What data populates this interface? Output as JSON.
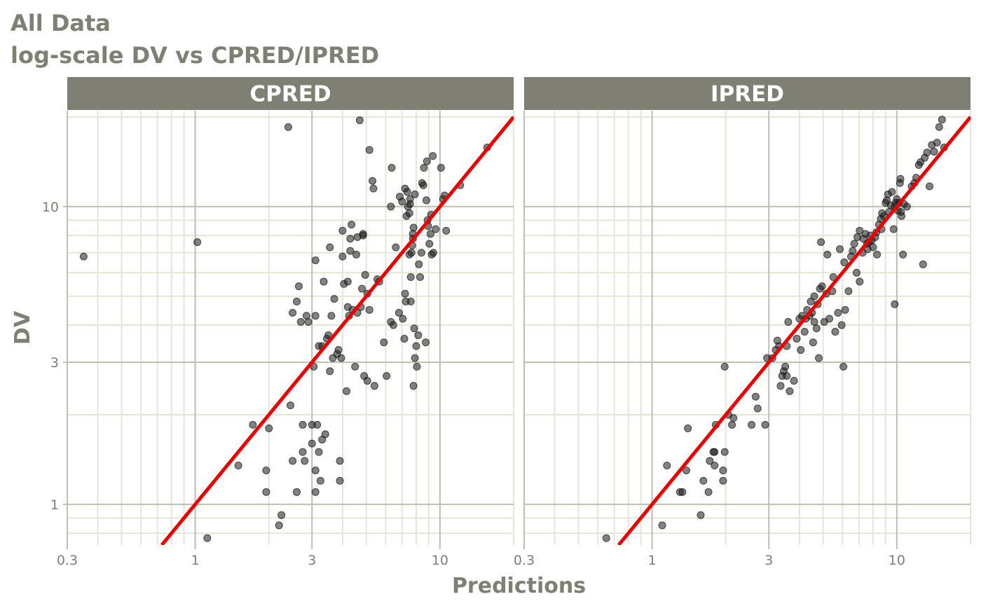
{
  "title_line1": "All Data",
  "title_line2": "log-scale DV vs CPRED/IPRED",
  "colors": {
    "text": "#7f7f74",
    "strip_bg": "#7f7f74",
    "strip_text": "#ffffff",
    "major_grid": "#bebeb2",
    "minor_grid": "#e6e6d8",
    "identity_line": "#ee0000",
    "points": "#1a1a1a"
  },
  "chart_data": {
    "type": "scatter",
    "xlabel": "Predictions",
    "ylabel": "DV",
    "x_scale": "log10",
    "y_scale": "log10",
    "xlim": [
      0.3,
      20
    ],
    "ylim": [
      0.73,
      21
    ],
    "x_ticks": [
      0.3,
      1,
      3,
      10
    ],
    "x_tick_labels": [
      "0.3",
      "1",
      "3",
      "10"
    ],
    "y_ticks": [
      1,
      3,
      10
    ],
    "y_tick_labels": [
      "1",
      "3",
      "10"
    ],
    "grid": true,
    "reference_line": "y = x",
    "panels": [
      {
        "label": "CPRED",
        "points": [
          [
            0.35,
            6.8
          ],
          [
            1.02,
            7.6
          ],
          [
            1.12,
            0.77
          ],
          [
            1.5,
            1.35
          ],
          [
            1.72,
            1.85
          ],
          [
            1.95,
            1.1
          ],
          [
            1.95,
            1.3
          ],
          [
            2.0,
            1.8
          ],
          [
            2.2,
            0.85
          ],
          [
            2.25,
            0.92
          ],
          [
            2.4,
            18.5
          ],
          [
            2.45,
            2.15
          ],
          [
            2.5,
            1.4
          ],
          [
            2.5,
            4.4
          ],
          [
            2.6,
            1.1
          ],
          [
            2.6,
            4.8
          ],
          [
            2.65,
            5.4
          ],
          [
            2.7,
            4.1
          ],
          [
            2.75,
            1.5
          ],
          [
            2.75,
            1.85
          ],
          [
            2.8,
            1.4
          ],
          [
            2.85,
            4.3
          ],
          [
            2.9,
            4.1
          ],
          [
            3.0,
            1.6
          ],
          [
            3.0,
            1.85
          ],
          [
            3.05,
            2.9
          ],
          [
            3.1,
            1.1
          ],
          [
            3.1,
            1.3
          ],
          [
            3.1,
            4.3
          ],
          [
            3.1,
            6.6
          ],
          [
            3.15,
            1.85
          ],
          [
            3.2,
            1.5
          ],
          [
            3.2,
            3.4
          ],
          [
            3.25,
            1.2
          ],
          [
            3.3,
            1.65
          ],
          [
            3.3,
            3.4
          ],
          [
            3.35,
            5.6
          ],
          [
            3.4,
            1.72
          ],
          [
            3.45,
            3.6
          ],
          [
            3.5,
            3.7
          ],
          [
            3.55,
            2.8
          ],
          [
            3.55,
            7.3
          ],
          [
            3.6,
            4.3
          ],
          [
            3.65,
            3.1
          ],
          [
            3.7,
            4.9
          ],
          [
            3.8,
            3.2
          ],
          [
            3.85,
            3.3
          ],
          [
            3.9,
            1.2
          ],
          [
            3.9,
            1.4
          ],
          [
            3.95,
            3.1
          ],
          [
            4.0,
            6.8
          ],
          [
            4.0,
            8.3
          ],
          [
            4.05,
            5.5
          ],
          [
            4.15,
            2.4
          ],
          [
            4.2,
            4.6
          ],
          [
            4.2,
            5.6
          ],
          [
            4.25,
            4.3
          ],
          [
            4.3,
            7.1
          ],
          [
            4.3,
            7.8
          ],
          [
            4.35,
            8.7
          ],
          [
            4.4,
            4.5
          ],
          [
            4.5,
            2.9
          ],
          [
            4.55,
            6.9
          ],
          [
            4.6,
            4.4
          ],
          [
            4.6,
            7.9
          ],
          [
            4.7,
            19.5
          ],
          [
            4.75,
            4.6
          ],
          [
            4.8,
            5.3
          ],
          [
            4.85,
            8.1
          ],
          [
            4.85,
            8.0
          ],
          [
            4.9,
            2.7
          ],
          [
            4.95,
            5.9
          ],
          [
            5.05,
            2.6
          ],
          [
            5.05,
            5.1
          ],
          [
            5.15,
            4.5
          ],
          [
            5.15,
            15.5
          ],
          [
            5.3,
            12.2
          ],
          [
            5.35,
            11.5
          ],
          [
            5.4,
            2.5
          ],
          [
            5.55,
            5.7
          ],
          [
            5.65,
            5.6
          ],
          [
            5.9,
            3.5
          ],
          [
            6.05,
            2.7
          ],
          [
            6.3,
            4.1
          ],
          [
            6.3,
            10.0
          ],
          [
            6.35,
            13.5
          ],
          [
            6.45,
            4.0
          ],
          [
            6.6,
            7.3
          ],
          [
            6.8,
            4.4
          ],
          [
            6.85,
            10.8
          ],
          [
            7.0,
            10.4
          ],
          [
            7.05,
            4.2
          ],
          [
            7.15,
            3.6
          ],
          [
            7.2,
            5.1
          ],
          [
            7.2,
            11.5
          ],
          [
            7.25,
            4.8
          ],
          [
            7.3,
            9.3
          ],
          [
            7.35,
            11.2
          ],
          [
            7.4,
            10.0
          ],
          [
            7.5,
            6.9
          ],
          [
            7.5,
            9.5
          ],
          [
            7.55,
            10.2
          ],
          [
            7.55,
            10.6
          ],
          [
            7.6,
            4.8
          ],
          [
            7.6,
            5.8
          ],
          [
            7.65,
            7.0
          ],
          [
            7.7,
            7.4
          ],
          [
            7.75,
            7.8
          ],
          [
            7.75,
            8.1
          ],
          [
            7.8,
            8.5
          ],
          [
            7.85,
            3.9
          ],
          [
            7.8,
            2.5
          ],
          [
            7.9,
            3.1
          ],
          [
            7.9,
            11.0
          ],
          [
            8.0,
            3.4
          ],
          [
            8.05,
            2.9
          ],
          [
            8.15,
            3.7
          ],
          [
            8.2,
            6.4
          ],
          [
            8.3,
            5.8
          ],
          [
            8.4,
            7.0
          ],
          [
            8.45,
            12.0
          ],
          [
            8.55,
            11.8
          ],
          [
            8.6,
            13.5
          ],
          [
            8.75,
            3.5
          ],
          [
            8.8,
            10.5
          ],
          [
            8.85,
            14.2
          ],
          [
            8.9,
            9.0
          ],
          [
            8.95,
            8.6
          ],
          [
            9.05,
            7.5
          ],
          [
            9.15,
            8.1
          ],
          [
            9.2,
            9.4
          ],
          [
            9.25,
            6.9
          ],
          [
            9.35,
            14.8
          ],
          [
            9.4,
            7.0
          ],
          [
            9.6,
            8.4
          ],
          [
            10.1,
            13.5
          ],
          [
            10.3,
            10.6
          ],
          [
            10.45,
            10.9
          ],
          [
            10.6,
            8.3
          ],
          [
            12.1,
            11.8
          ],
          [
            15.6,
            15.8
          ]
        ]
      },
      {
        "label": "IPRED",
        "points": [
          [
            0.65,
            0.77
          ],
          [
            1.1,
            0.85
          ],
          [
            1.15,
            1.35
          ],
          [
            1.3,
            1.1
          ],
          [
            1.33,
            1.1
          ],
          [
            1.38,
            1.3
          ],
          [
            1.4,
            1.8
          ],
          [
            1.58,
            0.92
          ],
          [
            1.62,
            1.2
          ],
          [
            1.7,
            1.1
          ],
          [
            1.72,
            1.4
          ],
          [
            1.78,
            1.5
          ],
          [
            1.8,
            1.5
          ],
          [
            1.8,
            1.35
          ],
          [
            1.82,
            1.85
          ],
          [
            1.95,
            1.2
          ],
          [
            1.95,
            1.3
          ],
          [
            1.98,
            1.5
          ],
          [
            1.98,
            2.9
          ],
          [
            2.05,
            2.0
          ],
          [
            2.12,
            1.85
          ],
          [
            2.15,
            1.95
          ],
          [
            2.55,
            1.85
          ],
          [
            2.65,
            2.3
          ],
          [
            2.7,
            2.1
          ],
          [
            2.9,
            1.85
          ],
          [
            2.95,
            3.1
          ],
          [
            3.1,
            3.1
          ],
          [
            3.2,
            3.3
          ],
          [
            3.25,
            3.55
          ],
          [
            3.3,
            3.4
          ],
          [
            3.35,
            2.5
          ],
          [
            3.4,
            2.7
          ],
          [
            3.45,
            2.8
          ],
          [
            3.5,
            2.9
          ],
          [
            3.55,
            2.7
          ],
          [
            3.55,
            3.4
          ],
          [
            3.6,
            4.1
          ],
          [
            3.65,
            2.4
          ],
          [
            3.8,
            2.6
          ],
          [
            3.9,
            3.6
          ],
          [
            4.0,
            4.2
          ],
          [
            4.05,
            3.3
          ],
          [
            4.1,
            4.3
          ],
          [
            4.2,
            3.8
          ],
          [
            4.25,
            4.2
          ],
          [
            4.3,
            4.5
          ],
          [
            4.4,
            4.3
          ],
          [
            4.45,
            4.8
          ],
          [
            4.5,
            4.4
          ],
          [
            4.55,
            3.5
          ],
          [
            4.6,
            5.0
          ],
          [
            4.6,
            4.1
          ],
          [
            4.7,
            3.9
          ],
          [
            4.75,
            4.7
          ],
          [
            4.8,
            3.1
          ],
          [
            4.85,
            5.3
          ],
          [
            4.9,
            7.6
          ],
          [
            4.95,
            5.4
          ],
          [
            5.05,
            4.1
          ],
          [
            5.15,
            5.1
          ],
          [
            5.2,
            6.9
          ],
          [
            5.3,
            4.2
          ],
          [
            5.45,
            5.2
          ],
          [
            5.5,
            5.8
          ],
          [
            5.6,
            3.8
          ],
          [
            5.75,
            4.4
          ],
          [
            5.85,
            7.2
          ],
          [
            5.95,
            4.0
          ],
          [
            6.05,
            2.9
          ],
          [
            6.1,
            6.5
          ],
          [
            6.15,
            4.5
          ],
          [
            6.35,
            5.2
          ],
          [
            6.5,
            6.8
          ],
          [
            6.6,
            7.1
          ],
          [
            6.7,
            7.5
          ],
          [
            6.85,
            6.0
          ],
          [
            6.9,
            7.9
          ],
          [
            7.05,
            5.6
          ],
          [
            7.05,
            8.3
          ],
          [
            7.25,
            7.0
          ],
          [
            7.3,
            7.8
          ],
          [
            7.45,
            8.1
          ],
          [
            7.55,
            7.5
          ],
          [
            7.6,
            7.2
          ],
          [
            7.7,
            7.6
          ],
          [
            7.8,
            8.0
          ],
          [
            7.9,
            7.7
          ],
          [
            8.0,
            7.3
          ],
          [
            8.15,
            7.9
          ],
          [
            8.25,
            8.2
          ],
          [
            8.3,
            6.9
          ],
          [
            8.45,
            8.7
          ],
          [
            8.6,
            9.1
          ],
          [
            8.65,
            8.4
          ],
          [
            8.7,
            9.5
          ],
          [
            8.85,
            9.3
          ],
          [
            9.0,
            10.3
          ],
          [
            9.1,
            10.5
          ],
          [
            9.2,
            11.0
          ],
          [
            9.3,
            9.6
          ],
          [
            9.45,
            10.1
          ],
          [
            9.55,
            11.2
          ],
          [
            9.7,
            8.4
          ],
          [
            9.8,
            4.7
          ],
          [
            9.8,
            10.0
          ],
          [
            9.9,
            10.3
          ],
          [
            10.0,
            10.6
          ],
          [
            10.1,
            9.7
          ],
          [
            10.2,
            10.3
          ],
          [
            10.3,
            12.0
          ],
          [
            10.35,
            12.4
          ],
          [
            10.4,
            9.6
          ],
          [
            10.45,
            9.3
          ],
          [
            10.6,
            6.9
          ],
          [
            10.7,
            10.2
          ],
          [
            11.0,
            10.0
          ],
          [
            11.5,
            11.7
          ],
          [
            11.8,
            12.0
          ],
          [
            12.0,
            12.5
          ],
          [
            12.3,
            13.8
          ],
          [
            12.5,
            14.1
          ],
          [
            12.8,
            6.4
          ],
          [
            13.0,
            14.6
          ],
          [
            13.3,
            15.2
          ],
          [
            13.6,
            11.7
          ],
          [
            13.9,
            16.1
          ],
          [
            14.2,
            15.3
          ],
          [
            14.6,
            16.4
          ],
          [
            14.9,
            18.5
          ],
          [
            15.3,
            19.6
          ],
          [
            15.6,
            15.8
          ]
        ]
      }
    ]
  }
}
